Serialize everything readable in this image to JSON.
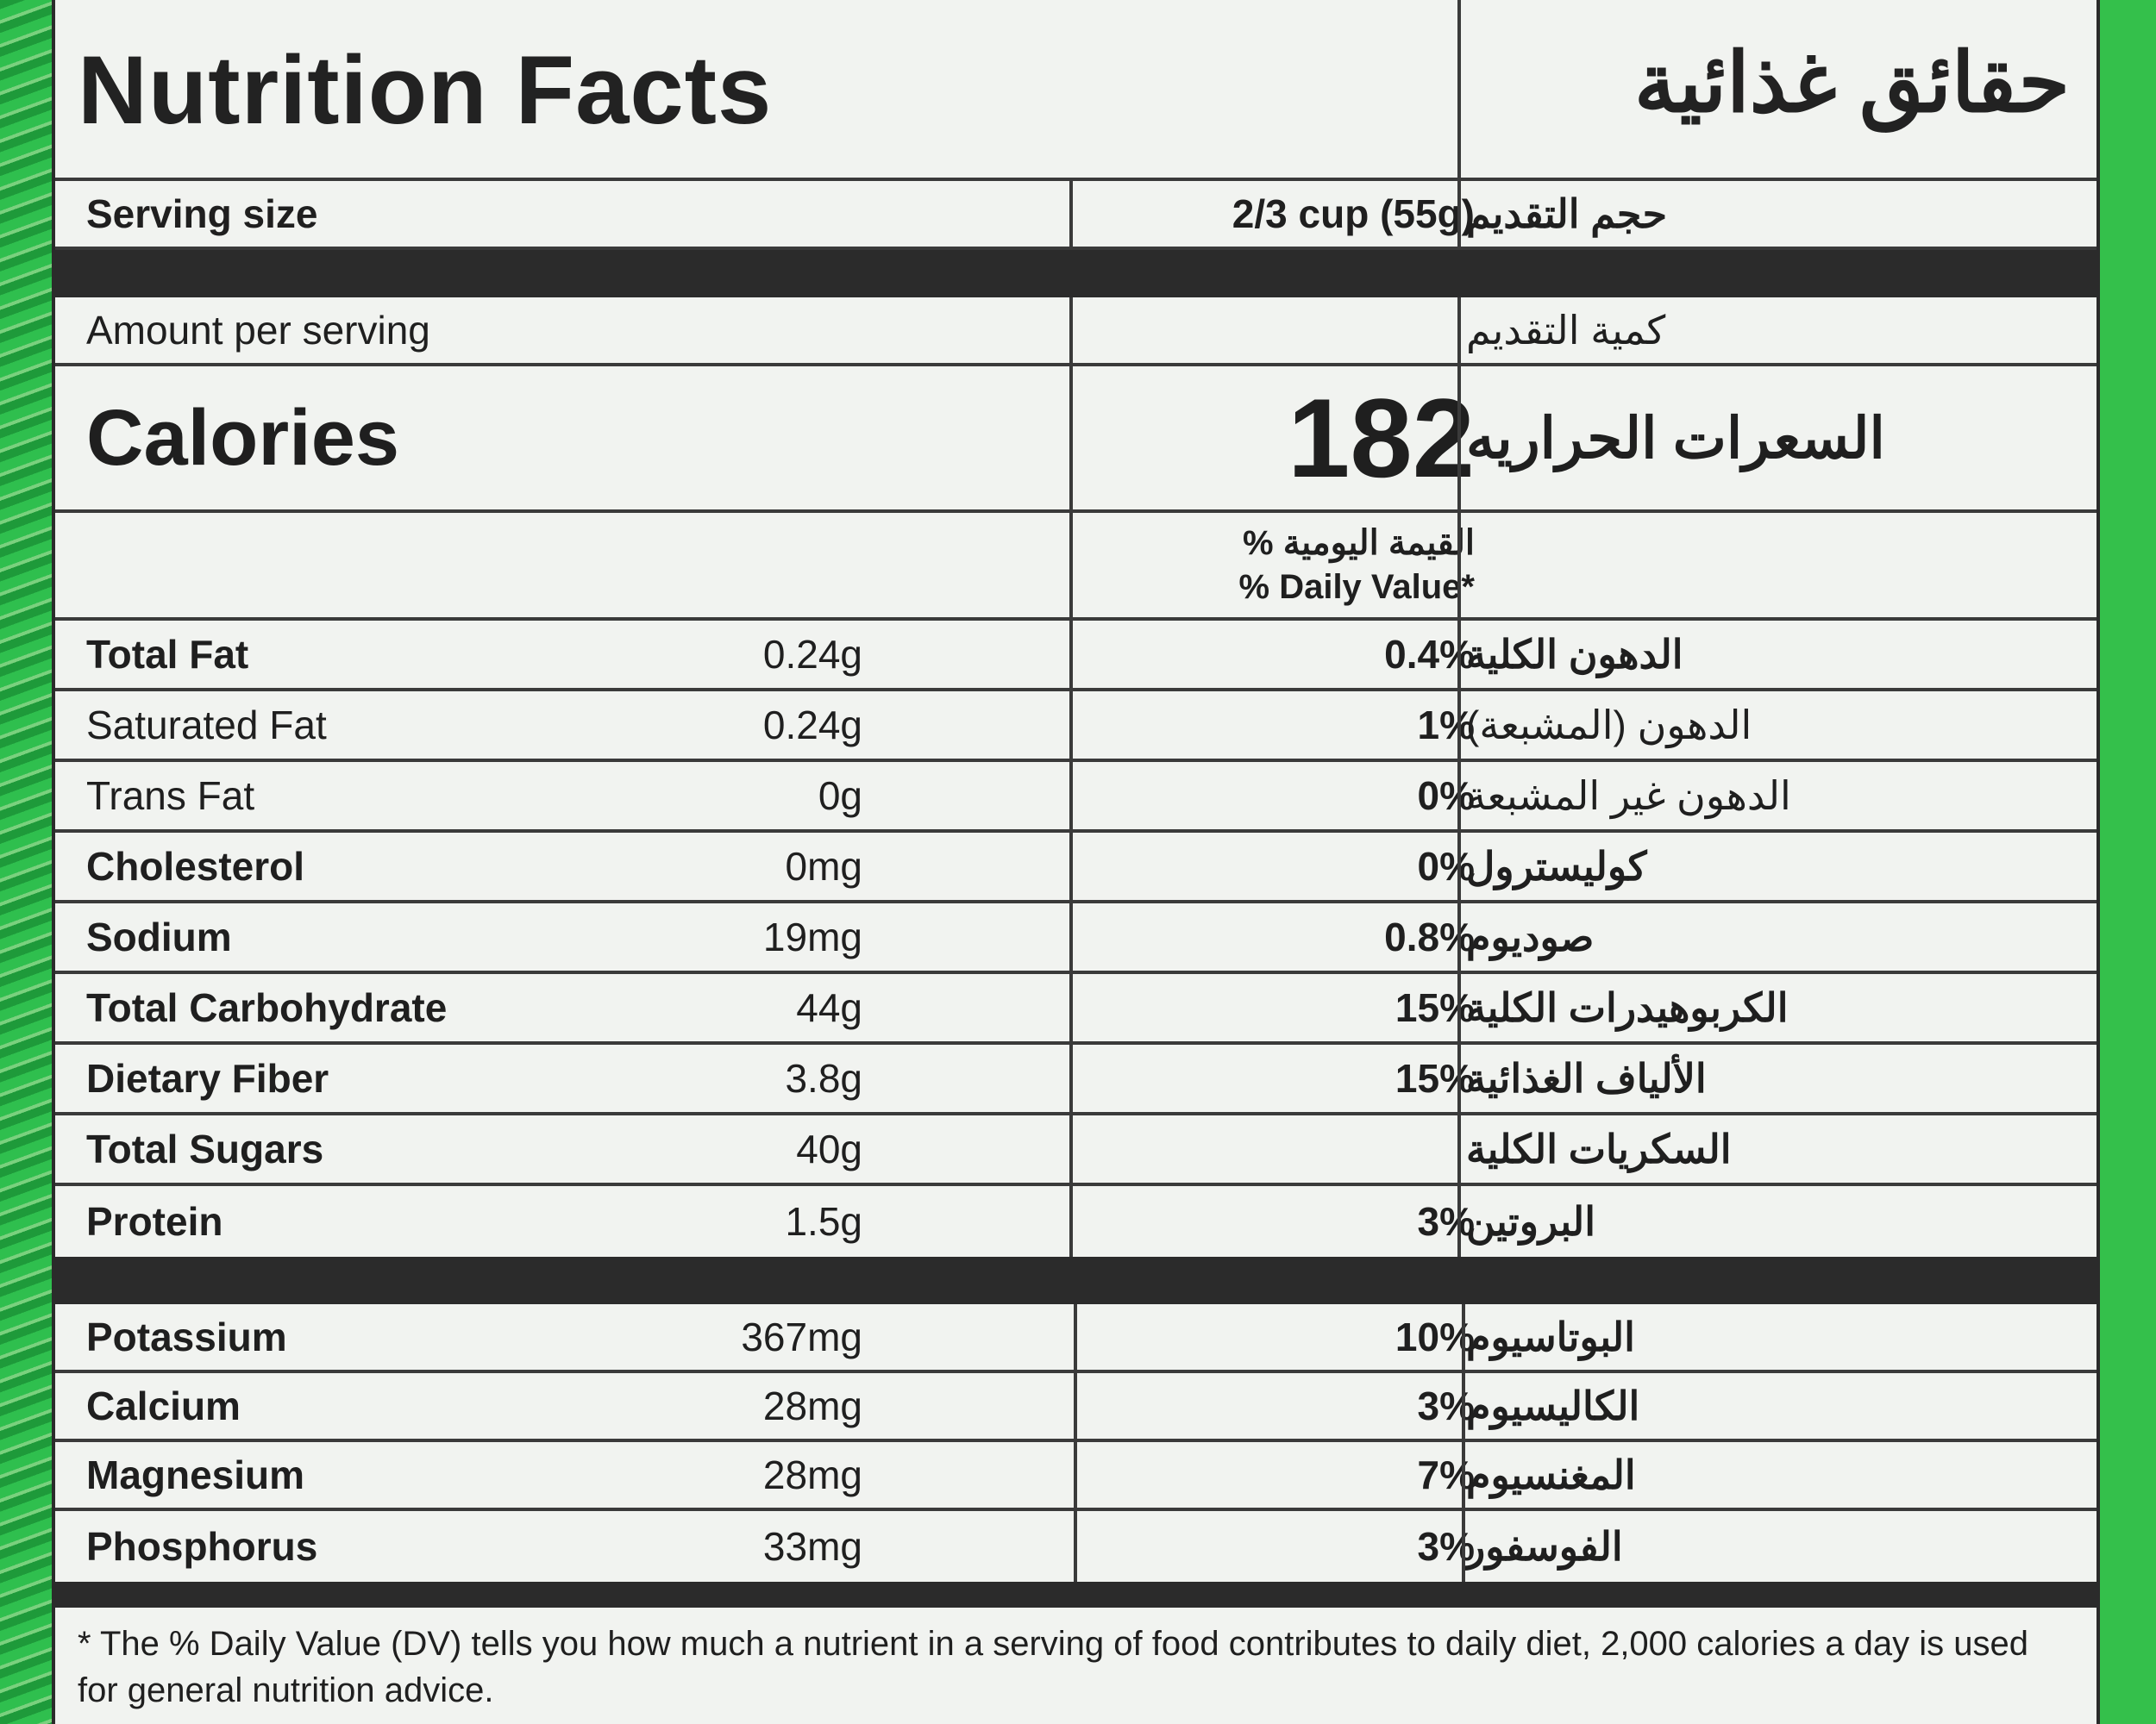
{
  "title": {
    "en": "Nutrition Facts",
    "ar": "حقائق غذائية"
  },
  "serving": {
    "label_en": "Serving size",
    "value": "2/3 cup (55g)",
    "label_ar": "حجم التقديم"
  },
  "amount_per_serving": {
    "en": "Amount per serving",
    "ar": "كمية التقديم"
  },
  "calories": {
    "label_en": "Calories",
    "value": "182",
    "label_ar": "السعرات الحراريه"
  },
  "daily_value_header": {
    "ar": "القيمة اليومية %",
    "en": "% Daily Value*"
  },
  "nutrients": [
    {
      "en": "Total Fat",
      "amount": "0.24g",
      "dv": "0.4%",
      "ar": "الدهون الكلية"
    },
    {
      "en": "Saturated Fat",
      "amount": "0.24g",
      "dv": "1%",
      "ar": "الدهون (المشبعة)"
    },
    {
      "en": "Trans Fat",
      "amount": "0g",
      "dv": "0%",
      "ar": "الدهون غير المشبعة"
    },
    {
      "en": "Cholesterol",
      "amount": "0mg",
      "dv": "0%",
      "ar": "كوليسترول"
    },
    {
      "en": "Sodium",
      "amount": "19mg",
      "dv": "0.8%",
      "ar": "صوديوم"
    },
    {
      "en": "Total Carbohydrate",
      "amount": "44g",
      "dv": "15%",
      "ar": "الكربوهيدرات الكلية"
    },
    {
      "en": "Dietary Fiber",
      "amount": "3.8g",
      "dv": "15%",
      "ar": "الألياف الغذائية"
    },
    {
      "en": "Total Sugars",
      "amount": "40g",
      "dv": "",
      "ar": "السكريات الكلية"
    },
    {
      "en": "Protein",
      "amount": "1.5g",
      "dv": "3%",
      "ar": "البروتين"
    }
  ],
  "minerals": [
    {
      "en": "Potassium",
      "amount": "367mg",
      "dv": "10%",
      "ar": "البوتاسيوم"
    },
    {
      "en": "Calcium",
      "amount": "28mg",
      "dv": "3%",
      "ar": "الكاليسيوم"
    },
    {
      "en": "Magnesium",
      "amount": "28mg",
      "dv": "7%",
      "ar": "المغنسيوم"
    },
    {
      "en": "Phosphorus",
      "amount": "33mg",
      "dv": "3%",
      "ar": "الفوسفور"
    }
  ],
  "footnote": "* The % Daily Value (DV) tells you how much a nutrient in a serving of food contributes to daily diet, 2,000 calories a day is used for  general nutrition advice."
}
